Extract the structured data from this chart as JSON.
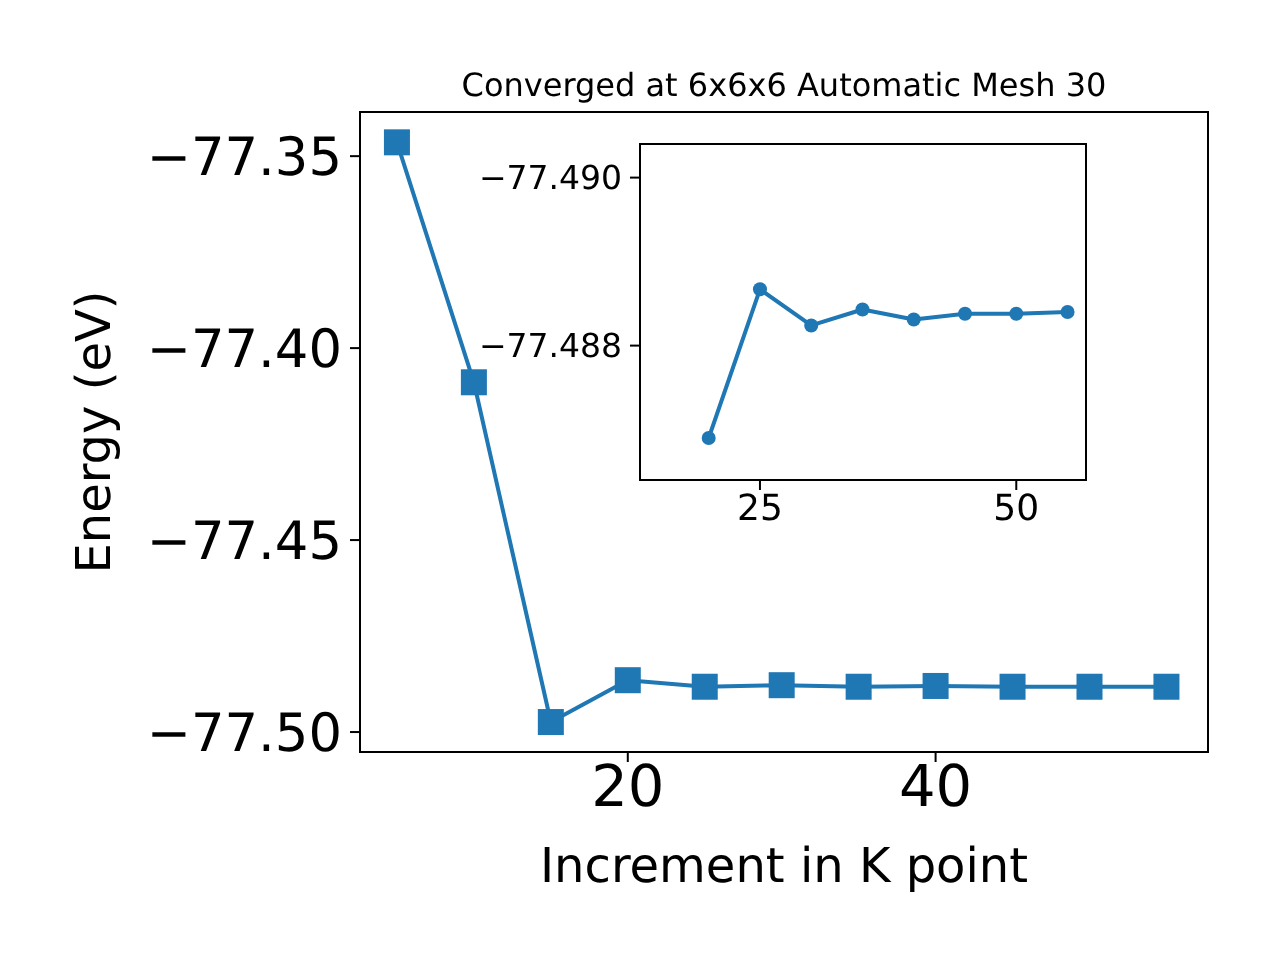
{
  "chart_data": [
    {
      "type": "line",
      "title": "Converged at 6x6x6 Automatic Mesh 30",
      "xlabel": "Increment in K point",
      "ylabel": "Energy (eV)",
      "marker": "square",
      "line_style": "solid",
      "x": [
        5,
        10,
        15,
        20,
        25,
        30,
        35,
        40,
        45,
        50,
        55
      ],
      "series": [
        {
          "color": "#1f77b4",
          "values": [
            -77.3464,
            -77.4089,
            -77.4974,
            -77.4865,
            -77.4882,
            -77.4878,
            -77.4882,
            -77.488,
            -77.4882,
            -77.4882,
            -77.4882
          ]
        }
      ],
      "xlim": [
        2.6,
        57.7
      ],
      "xticks": [
        20,
        40
      ],
      "ylim": [
        -77.5052,
        -77.3385
      ],
      "yticks": [
        {
          "value": -77.35,
          "label": "−77.35"
        },
        {
          "value": -77.4,
          "label": "−77.40"
        },
        {
          "value": -77.45,
          "label": "−77.45"
        },
        {
          "value": -77.5,
          "label": "−77.50"
        }
      ]
    },
    {
      "type": "line",
      "marker": "circle",
      "line_style": "solid",
      "x": [
        20,
        25,
        30,
        35,
        40,
        45,
        50,
        55
      ],
      "series": [
        {
          "color": "#1f77b4",
          "values": [
            -77.4869,
            -77.48867,
            -77.48824,
            -77.48843,
            -77.48831,
            -77.48838,
            -77.48838,
            -77.4884
          ]
        }
      ],
      "xlim": [
        13.3,
        56.8
      ],
      "xticks": [
        25,
        50
      ],
      "ylim": [
        -77.4864,
        -77.4904
      ],
      "yticks": [
        {
          "value": -77.49,
          "label": "−77.490"
        },
        {
          "value": -77.488,
          "label": "−77.488"
        }
      ]
    }
  ]
}
